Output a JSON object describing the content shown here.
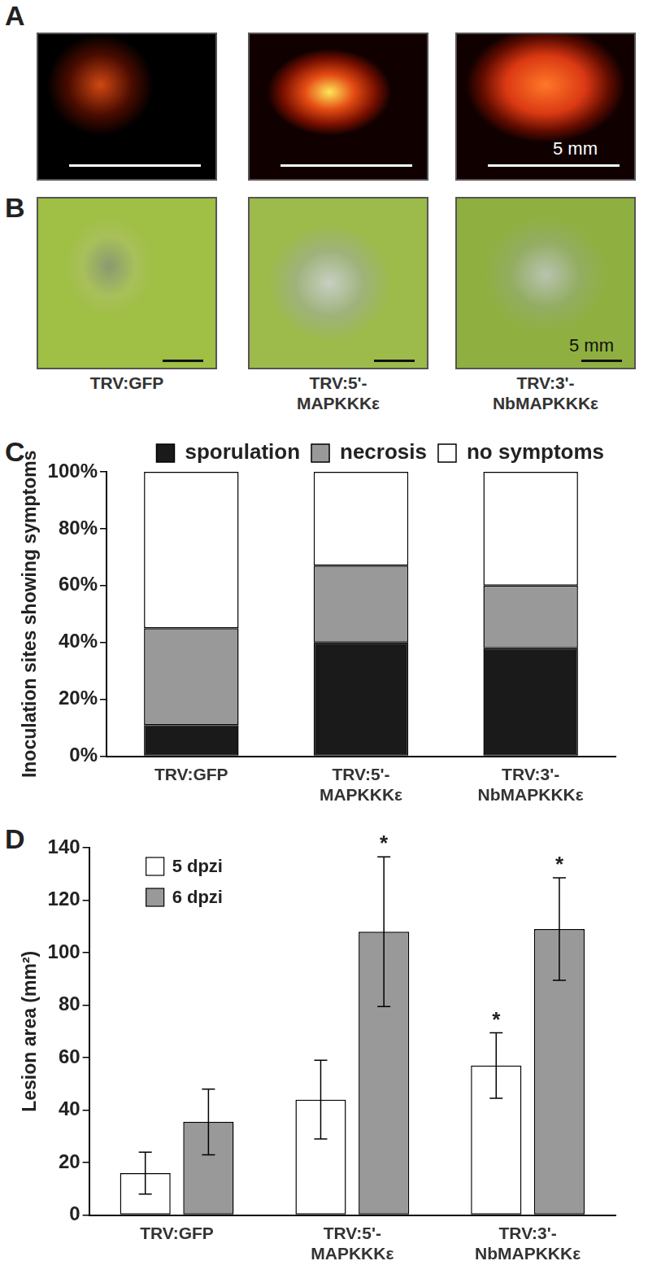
{
  "panels": {
    "A": {
      "label": "A",
      "scale_bar": "5 mm"
    },
    "B": {
      "label": "B",
      "scale_bar": "5 mm",
      "captions": [
        "TRV:GFP",
        "TRV:5'-\nMAPKKKε",
        "TRV:3'-\nNbMAPKKKε"
      ]
    }
  },
  "chart_data": [
    {
      "label": "C",
      "type": "bar",
      "stacked": true,
      "y_label": "Inoculation sites showing symptoms",
      "categories": [
        "TRV:GFP",
        "TRV:5'-\nMAPKKKε",
        "TRV:3'-\nNbMAPKKKε"
      ],
      "series": [
        {
          "name": "sporulation",
          "color": "#1a1a1a",
          "values": [
            11,
            40,
            38
          ]
        },
        {
          "name": "necrosis",
          "color": "#999999",
          "values": [
            34,
            27,
            22
          ]
        },
        {
          "name": "no symptoms",
          "color": "#ffffff",
          "values": [
            55,
            33,
            40
          ]
        }
      ],
      "ylim": [
        0,
        100
      ],
      "yticks": [
        {
          "value": 0,
          "label": "0%"
        },
        {
          "value": 20,
          "label": "20%"
        },
        {
          "value": 40,
          "label": "40%"
        },
        {
          "value": 60,
          "label": "60%"
        },
        {
          "value": 80,
          "label": "80%"
        },
        {
          "value": 100,
          "label": "100%"
        }
      ],
      "grid": false,
      "legend": "top"
    },
    {
      "label": "D",
      "type": "bar",
      "y_label": "Lesion area (mm²)",
      "categories": [
        "TRV:GFP",
        "TRV:5'-\nMAPKKKε",
        "TRV:3'-\nNbMAPKKKε"
      ],
      "series": [
        {
          "name": "5 dpzi",
          "color": "#ffffff",
          "values": [
            16,
            44,
            57
          ],
          "errors": [
            8,
            15,
            12.5
          ],
          "annotations": [
            null,
            null,
            "*"
          ]
        },
        {
          "name": "6 dpzi",
          "color": "#999999",
          "values": [
            35.5,
            108,
            109
          ],
          "errors": [
            12.5,
            28.5,
            19.5
          ],
          "annotations": [
            null,
            "*",
            "*"
          ]
        }
      ],
      "ylim": [
        0,
        140
      ],
      "yticks": [
        0,
        20,
        40,
        60,
        80,
        100,
        120,
        140
      ],
      "grid": false,
      "legend": "upper left"
    }
  ]
}
